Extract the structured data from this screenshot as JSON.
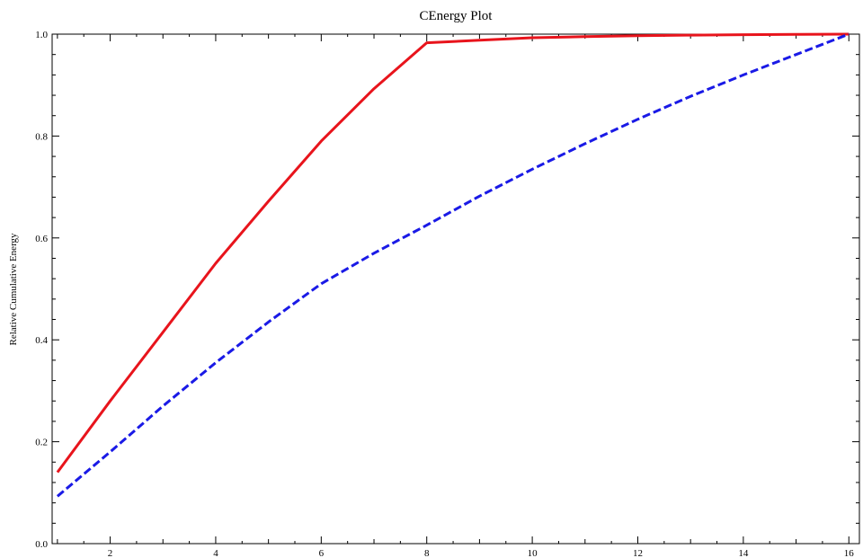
{
  "chart_data": {
    "type": "line",
    "title": "CEnergy Plot",
    "xlabel": "",
    "ylabel": "Relative Cumulative Energy",
    "xlim": [
      0.9,
      16.2
    ],
    "ylim": [
      0,
      1.0
    ],
    "x_ticks_major": [
      2,
      4,
      6,
      8,
      10,
      12,
      14,
      16
    ],
    "x_tick_labels": [
      "2",
      "4",
      "6",
      "8",
      "10",
      "12",
      "14",
      "16"
    ],
    "y_ticks_major": [
      0,
      0.2,
      0.4,
      0.6,
      0.8,
      1.0
    ],
    "y_tick_labels": [
      "0.0",
      "0.2",
      "0.4",
      "0.6",
      "0.8",
      "1.0"
    ],
    "grid": false,
    "legend": "none",
    "series": [
      {
        "color": "#e8141c",
        "dash": "solid",
        "x": [
          1,
          2,
          3,
          4,
          5,
          6,
          7,
          8,
          9,
          10,
          11,
          12,
          13,
          14,
          15,
          16
        ],
        "y": [
          0.14,
          0.28,
          0.415,
          0.55,
          0.672,
          0.79,
          0.893,
          0.983,
          0.988,
          0.993,
          0.995,
          0.997,
          0.998,
          0.999,
          0.9995,
          1.0
        ]
      },
      {
        "color": "#1a1ae6",
        "dash": "dashed",
        "x": [
          1,
          2,
          3,
          4,
          5,
          6,
          7,
          8,
          9,
          10,
          11,
          12,
          13,
          14,
          15,
          16
        ],
        "y": [
          0.093,
          0.18,
          0.27,
          0.355,
          0.435,
          0.51,
          0.57,
          0.625,
          0.682,
          0.735,
          0.785,
          0.833,
          0.878,
          0.92,
          0.96,
          1.0
        ]
      }
    ]
  }
}
